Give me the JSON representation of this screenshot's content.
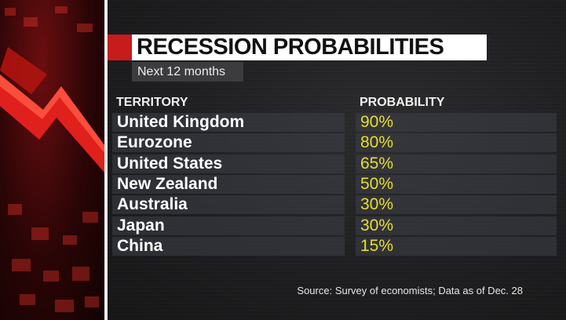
{
  "title": "RECESSION PROBABILITIES",
  "subtitle": "Next 12 months",
  "source": "Source: Survey of economists; Data as of Dec. 28",
  "colors": {
    "title_bg": "#ffffff",
    "accent": "#c71c1c",
    "value_text": "#e9de2c",
    "background": "#1e1e20"
  },
  "chart_data": {
    "type": "table",
    "title": "RECESSION PROBABILITIES",
    "subtitle": "Next 12 months",
    "columns": [
      "TERRITORY",
      "PROBABILITY"
    ],
    "rows": [
      {
        "territory": "United Kingdom",
        "probability": "90%"
      },
      {
        "territory": "Eurozone",
        "probability": "80%"
      },
      {
        "territory": "United States",
        "probability": "65%"
      },
      {
        "territory": "New Zealand",
        "probability": "50%"
      },
      {
        "territory": "Australia",
        "probability": "30%"
      },
      {
        "territory": "Japan",
        "probability": "30%"
      },
      {
        "territory": "China",
        "probability": "15%"
      }
    ]
  }
}
